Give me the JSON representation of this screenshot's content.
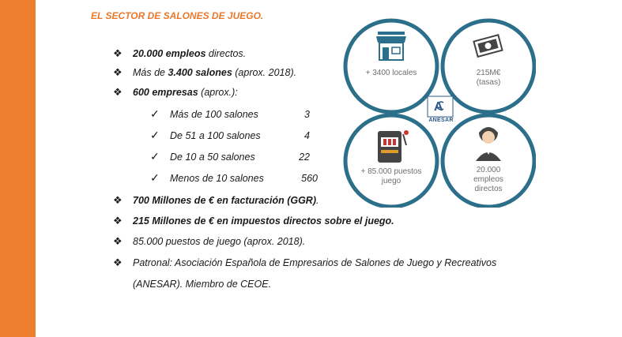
{
  "title": "EL SECTOR DE SALONES DE JUEGO.",
  "bullets": [
    {
      "bold": "20.000 empleos",
      "rest": " directos."
    },
    {
      "pre": "Más de ",
      "bold": "3.400 salones",
      "rest": " (aprox. 2018)."
    },
    {
      "bold": "600 empresas",
      "rest": " (aprox.):"
    }
  ],
  "sub_items": [
    {
      "label": "Más de 100 salones",
      "value": "3"
    },
    {
      "label": "De 51 a 100 salones",
      "value": "4"
    },
    {
      "label": "De 10 a 50 salones",
      "value": "22"
    },
    {
      "label": "Menos de 10 salones",
      "value": "560"
    }
  ],
  "bullets2": [
    {
      "bold": "700 Millones de € en facturación (GGR)",
      "rest": "."
    },
    {
      "bold": "215 Millones de € en impuestos directos sobre el juego.",
      "rest": ""
    },
    {
      "plain": "85.000 puestos de juego (aprox. 2018)."
    },
    {
      "plain": "Patronal: Asociación Española de Empresarios de Salones de Juego y Recreativos"
    },
    {
      "cont": "(ANESAR). Miembro de CEOE."
    }
  ],
  "infographic": {
    "top_left": "+ 3400 locales",
    "top_right_1": "215M€",
    "top_right_2": "(tasas)",
    "bottom_left_1": "+ 85.000 puestos",
    "bottom_left_2": "juego",
    "bottom_right_1": "20.000",
    "bottom_right_2": "empleos",
    "bottom_right_3": "directos",
    "logo": "ANESAR",
    "ring_color": "#2b6f8a"
  }
}
